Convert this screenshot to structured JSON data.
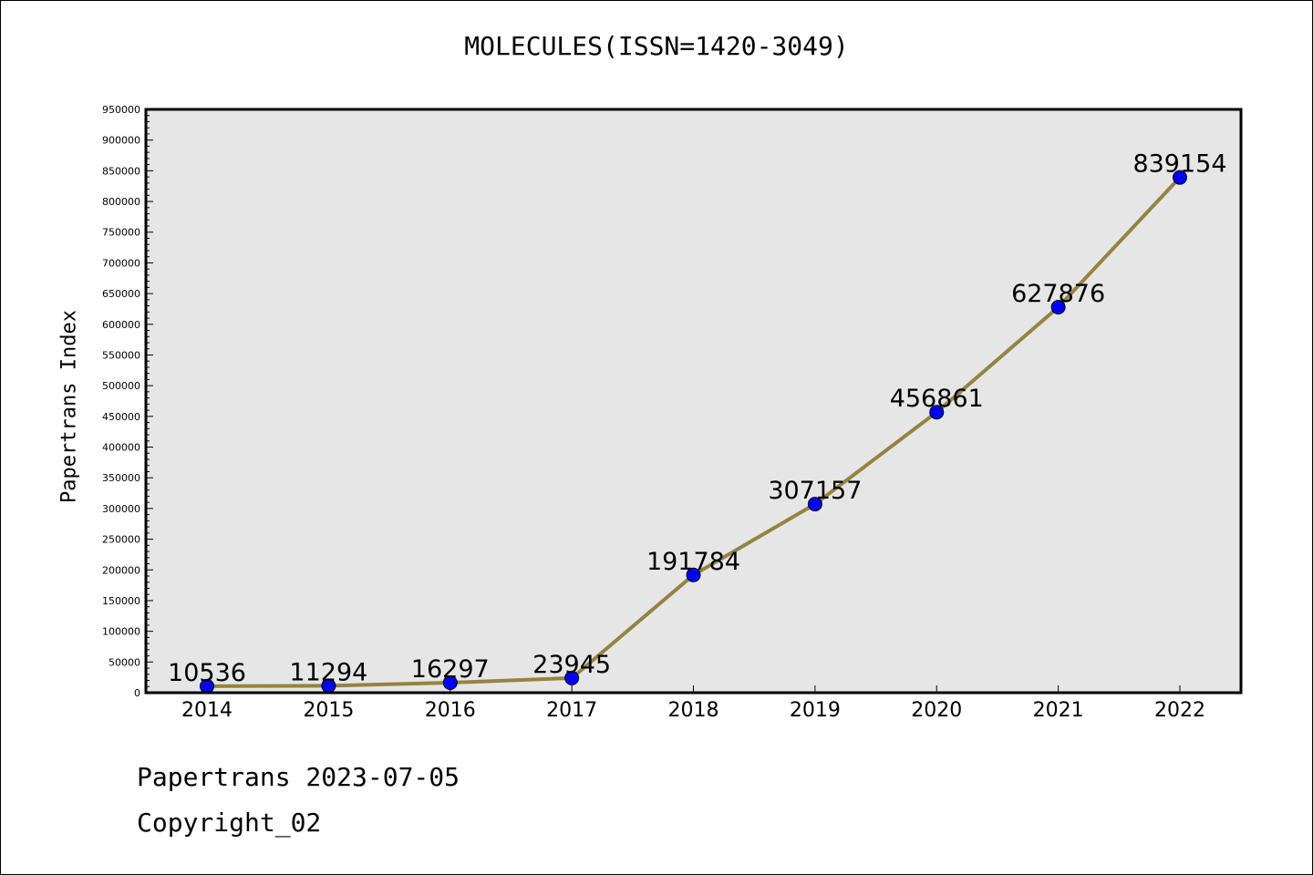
{
  "chart_data": {
    "type": "line",
    "title": "MOLECULES(ISSN=1420-3049)",
    "xlabel": "",
    "ylabel": "Papertrans Index",
    "categories": [
      "2014",
      "2015",
      "2016",
      "2017",
      "2018",
      "2019",
      "2020",
      "2021",
      "2022"
    ],
    "values": [
      10536,
      11294,
      16297,
      23945,
      191784,
      307157,
      456861,
      627876,
      839154
    ],
    "value_labels": [
      "10536",
      "11294",
      "16297",
      "23945",
      "191784",
      "307157",
      "456861",
      "627876",
      "839154"
    ],
    "ylim": [
      0,
      950000
    ],
    "y_ticks": [
      0,
      50000,
      100000,
      150000,
      200000,
      250000,
      300000,
      350000,
      400000,
      450000,
      500000,
      550000,
      600000,
      650000,
      700000,
      750000,
      800000,
      850000,
      900000,
      950000
    ],
    "y_tick_labels": [
      "0",
      "50000",
      "100000",
      "150000",
      "200000",
      "250000",
      "300000",
      "350000",
      "400000",
      "450000",
      "500000",
      "550000",
      "600000",
      "650000",
      "700000",
      "750000",
      "800000",
      "850000",
      "900000",
      "950000"
    ],
    "grid": false,
    "colors": {
      "line": "#948440",
      "marker": "#0000ff",
      "plot_background": "#e6e6e6"
    }
  },
  "footer": {
    "line1": "Papertrans 2023-07-05",
    "line2": "Copyright_02"
  }
}
